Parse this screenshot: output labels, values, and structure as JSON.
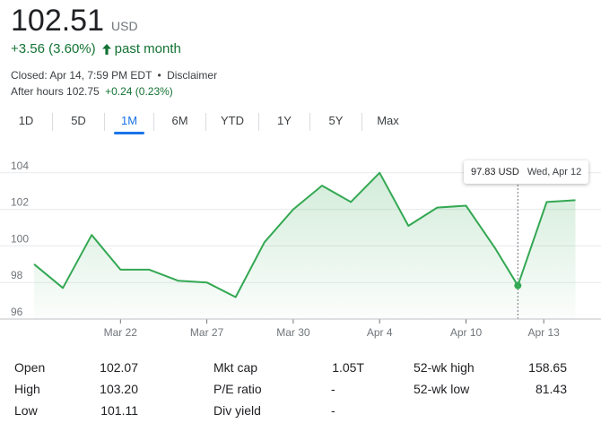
{
  "quote": {
    "price": "102.51",
    "currency": "USD",
    "change": "+3.56 (3.60%)",
    "period": "past month",
    "closed_text": "Closed: Apr 14, 7:59 PM EDT",
    "separator": "•",
    "disclaimer": "Disclaimer",
    "after_hours_label": "After hours 102.75",
    "after_hours_change": "+0.24 (0.23%)",
    "positive_color": "#137333"
  },
  "tabs": [
    {
      "label": "1D"
    },
    {
      "label": "5D"
    },
    {
      "label": "1M"
    },
    {
      "label": "6M"
    },
    {
      "label": "YTD"
    },
    {
      "label": "1Y"
    },
    {
      "label": "5Y"
    },
    {
      "label": "Max"
    }
  ],
  "active_tab": "1M",
  "tooltip": {
    "price": "97.83 USD",
    "date": "Wed, Apr 12"
  },
  "chart_data": {
    "type": "area",
    "title": "",
    "xlabel": "",
    "ylabel": "",
    "ylim": [
      96,
      105
    ],
    "grid": true,
    "line_color": "#34a853",
    "y_ticks": [
      96,
      98,
      100,
      102,
      104
    ],
    "x_ticks": [
      {
        "label": "Mar 22",
        "x": 3
      },
      {
        "label": "Mar 27",
        "x": 6
      },
      {
        "label": "Mar 30",
        "x": 9
      },
      {
        "label": "Apr 4",
        "x": 12
      },
      {
        "label": "Apr 10",
        "x": 15
      },
      {
        "label": "Apr 13",
        "x": 17.7
      }
    ],
    "series": [
      {
        "x": [
          0,
          1,
          2,
          3,
          4,
          5,
          6,
          7,
          8,
          9,
          10,
          11,
          12,
          13,
          14,
          15,
          16,
          16.8,
          17.8,
          18.8
        ],
        "values": [
          99.0,
          97.7,
          100.6,
          98.7,
          98.7,
          98.1,
          98.0,
          97.2,
          100.2,
          102.0,
          103.3,
          102.4,
          104.0,
          101.1,
          102.1,
          102.2,
          99.9,
          97.83,
          102.4,
          102.5
        ]
      }
    ],
    "highlight": {
      "x": 16.8,
      "value": 97.83
    }
  },
  "stats": [
    [
      {
        "label": "Open",
        "value": "102.07"
      },
      {
        "label": "Mkt cap",
        "value": "1.05T"
      },
      {
        "label": "52-wk high",
        "value": "158.65"
      }
    ],
    [
      {
        "label": "High",
        "value": "103.20"
      },
      {
        "label": "P/E ratio",
        "value": "-"
      },
      {
        "label": "52-wk low",
        "value": "81.43"
      }
    ],
    [
      {
        "label": "Low",
        "value": "101.11"
      },
      {
        "label": "Div yield",
        "value": "-"
      }
    ]
  ]
}
